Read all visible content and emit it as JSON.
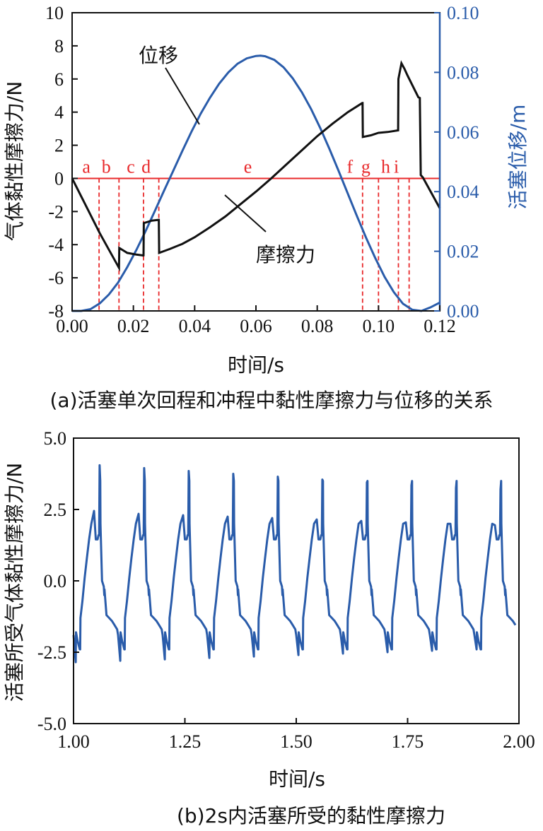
{
  "chart_data": [
    {
      "type": "line",
      "caption": "(a)活塞单次回程和冲程中黏性摩擦力与位移的关系",
      "xlabel": "时间/s",
      "ylabel_left": "气体黏性摩擦力/N",
      "ylabel_right": "活塞位移/m",
      "xlim": [
        0,
        0.12
      ],
      "ylim_left": [
        -8,
        10
      ],
      "ylim_right": [
        0,
        0.1
      ],
      "x_ticks": [
        "0.00",
        "0.02",
        "0.04",
        "0.06",
        "0.08",
        "0.10",
        "0.12"
      ],
      "y_ticks_left": [
        "-8",
        "-6",
        "-4",
        "-2",
        "0",
        "2",
        "4",
        "6",
        "8",
        "10"
      ],
      "y_ticks_right": [
        "0.00",
        "0.02",
        "0.04",
        "0.06",
        "0.08",
        "0.10"
      ],
      "colors": {
        "friction": "#111111",
        "displacement": "#2a5caa",
        "zero_line": "#e8292b",
        "right_axis": "#2a5caa"
      },
      "annotations": [
        {
          "text": "位移",
          "series": "displacement"
        },
        {
          "text": "摩擦力",
          "series": "friction"
        }
      ],
      "zero_line": 0,
      "markers": [
        {
          "label": "a",
          "x": 0.0088
        },
        {
          "label": "b",
          "x": 0.0153
        },
        {
          "label": "c",
          "x": 0.0233
        },
        {
          "label": "d",
          "x": 0.0283
        },
        {
          "label": "e",
          "x": 0.0615
        },
        {
          "label": "f",
          "x": 0.0948
        },
        {
          "label": "g",
          "x": 0.1
        },
        {
          "label": "h",
          "x": 0.1065
        },
        {
          "label": "i",
          "x": 0.11
        }
      ],
      "series": [
        {
          "name": "摩擦力",
          "axis": "left",
          "x": [
            0.0,
            0.003,
            0.006,
            0.009,
            0.012,
            0.015,
            0.0153,
            0.0154,
            0.018,
            0.021,
            0.0232,
            0.0233,
            0.0234,
            0.026,
            0.0282,
            0.0283,
            0.0284,
            0.032,
            0.036,
            0.04,
            0.045,
            0.05,
            0.055,
            0.06,
            0.065,
            0.07,
            0.075,
            0.08,
            0.085,
            0.09,
            0.0947,
            0.0948,
            0.0949,
            0.0975,
            0.1,
            0.103,
            0.1064,
            0.1065,
            0.1075,
            0.1085,
            0.1095,
            0.113,
            0.1135,
            0.1138,
            0.1145,
            0.12
          ],
          "y": [
            0.0,
            -1.1,
            -2.2,
            -3.3,
            -4.3,
            -5.3,
            -5.4,
            -4.2,
            -4.5,
            -4.6,
            -4.65,
            -4.7,
            -2.7,
            -2.55,
            -2.5,
            -2.5,
            -4.5,
            -4.25,
            -3.95,
            -3.55,
            -2.95,
            -2.3,
            -1.55,
            -0.8,
            0.0,
            0.85,
            1.7,
            2.55,
            3.3,
            4.0,
            4.55,
            4.55,
            2.5,
            2.6,
            2.75,
            2.8,
            2.9,
            6.0,
            6.95,
            6.6,
            6.2,
            4.9,
            4.85,
            0.2,
            0.05,
            -1.8
          ]
        },
        {
          "name": "位移",
          "axis": "right",
          "x": [
            0.0,
            0.003,
            0.006,
            0.009,
            0.012,
            0.015,
            0.018,
            0.021,
            0.024,
            0.027,
            0.03,
            0.033,
            0.036,
            0.039,
            0.042,
            0.045,
            0.048,
            0.051,
            0.054,
            0.057,
            0.06,
            0.0615,
            0.063,
            0.066,
            0.069,
            0.072,
            0.075,
            0.078,
            0.081,
            0.084,
            0.087,
            0.09,
            0.093,
            0.096,
            0.099,
            0.102,
            0.105,
            0.108,
            0.111,
            0.114,
            0.117,
            0.12
          ],
          "y": [
            0.0,
            0.0,
            0.0006,
            0.0025,
            0.0055,
            0.0095,
            0.0147,
            0.0205,
            0.0268,
            0.0335,
            0.0403,
            0.047,
            0.0537,
            0.0602,
            0.0662,
            0.0715,
            0.0762,
            0.08,
            0.0829,
            0.0847,
            0.0855,
            0.0856,
            0.0854,
            0.0842,
            0.0817,
            0.078,
            0.0733,
            0.0677,
            0.0613,
            0.0543,
            0.0469,
            0.0393,
            0.0317,
            0.0244,
            0.0176,
            0.0114,
            0.0063,
            0.0024,
            0.0004,
            0.0,
            0.0012,
            0.0028
          ]
        }
      ]
    },
    {
      "type": "line",
      "caption": "(b)2s内活塞所受的黏性摩擦力",
      "xlabel": "时间/s",
      "ylabel": "活塞所受气体黏性摩擦力/N",
      "xlim": [
        1.0,
        2.0
      ],
      "ylim": [
        -5.0,
        5.0
      ],
      "x_ticks": [
        "1.00",
        "1.25",
        "1.50",
        "1.75",
        "2.00"
      ],
      "y_ticks": [
        "-5.0",
        "-2.5",
        "0.0",
        "2.5",
        "5.0"
      ],
      "color": "#2a5caa",
      "cycle_period": 0.1,
      "cycle_shape": {
        "t": [
          0.0,
          0.005,
          0.0055,
          0.009,
          0.014,
          0.015,
          0.0155,
          0.02,
          0.025,
          0.03,
          0.035,
          0.04,
          0.046,
          0.05,
          0.054,
          0.056,
          0.0575,
          0.0585,
          0.06,
          0.0605,
          0.064,
          0.068,
          0.069,
          0.0695,
          0.074,
          0.08,
          0.086,
          0.092,
          0.098,
          0.1
        ],
        "y": [
          -1.9,
          -2.6,
          -1.8,
          -2.1,
          -2.4,
          -2.4,
          -1.3,
          -0.7,
          0.1,
          0.8,
          1.45,
          2.0,
          2.4,
          1.45,
          1.45,
          1.6,
          1.6,
          4.0,
          3.5,
          2.0,
          0.0,
          -0.2,
          -0.5,
          -0.3,
          -1.2,
          -1.3,
          -1.4,
          -1.55,
          -1.7,
          -1.9
        ]
      },
      "cycles": [
        {
          "start": 1.0,
          "peak": 4.05,
          "pre_peak": 2.45,
          "trough": -2.85
        },
        {
          "start": 1.1,
          "peak": 3.95,
          "pre_peak": 2.35,
          "trough": -2.8
        },
        {
          "start": 1.2,
          "peak": 3.85,
          "pre_peak": 2.3,
          "trough": -2.75
        },
        {
          "start": 1.3,
          "peak": 3.75,
          "pre_peak": 2.25,
          "trough": -2.7
        },
        {
          "start": 1.4,
          "peak": 3.65,
          "pre_peak": 2.2,
          "trough": -2.65
        },
        {
          "start": 1.5,
          "peak": 3.55,
          "pre_peak": 2.15,
          "trough": -2.6
        },
        {
          "start": 1.6,
          "peak": 3.45,
          "pre_peak": 2.1,
          "trough": -2.55
        },
        {
          "start": 1.7,
          "peak": 3.35,
          "pre_peak": 2.05,
          "trough": -2.5
        },
        {
          "start": 1.8,
          "peak": 3.25,
          "pre_peak": 2.0,
          "trough": -2.45
        },
        {
          "start": 1.9,
          "peak": 3.2,
          "pre_peak": 1.95,
          "trough": -2.4
        }
      ],
      "end_x": 1.995
    }
  ]
}
